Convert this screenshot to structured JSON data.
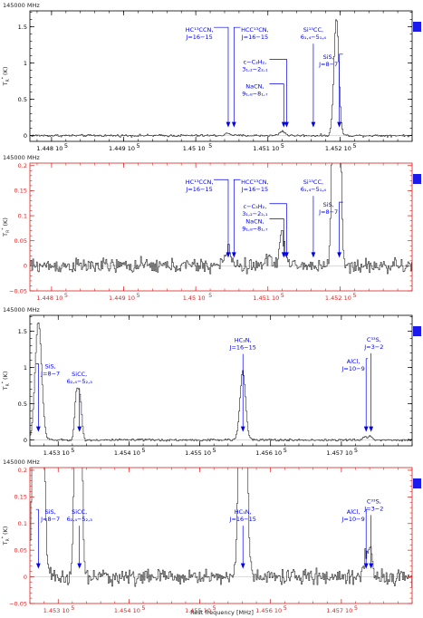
{
  "figure": {
    "xlabel": "Rest frequency [MHz]"
  },
  "chart_data": [
    {
      "type": "line",
      "frequency_label": "145000 MHz",
      "ylabel": "T",
      "ylabel_sub": "R",
      "ylabel_sup": "*",
      "ylabel_unit": "(K)",
      "xlim": [
        144770,
        145300
      ],
      "ylim": [
        -0.08,
        1.72
      ],
      "yticks": [
        0,
        0.5,
        1,
        1.5
      ],
      "ytick_labels": [
        "0",
        "0.5",
        "1",
        "1.5"
      ],
      "xticks": [
        144800,
        144900,
        145000,
        145100,
        145200
      ],
      "xtick_labels": [
        "1.448 10",
        "1.449 10",
        "1.45 10",
        "1.451 10",
        "1.452 10"
      ],
      "xtick_exp": "5",
      "axis_color": "#000000",
      "marker_color": "#1a1aee",
      "noise": 0.01,
      "lines": [
        {
          "x": 145195,
          "w": 3.5,
          "h": 1.62
        },
        {
          "x": 145120,
          "w": 4,
          "h": 0.06
        },
        {
          "x": 145045,
          "w": 4,
          "h": 0.03
        }
      ],
      "annotations": [
        {
          "x": 145045,
          "label_x": 145005,
          "label_y": 1.43,
          "lines": [
            "HC¹³CCN,",
            "J=16−15"
          ]
        },
        {
          "x": 145053,
          "label_x": 145082,
          "label_y": 1.43,
          "lines": [
            "HCC¹³CN,",
            "J=16−15"
          ]
        },
        {
          "x": 145126,
          "label_x": 145082,
          "label_y": 0.99,
          "lines": [
            "c−C₃H₂,",
            "3₁,₂−2₂,₁"
          ]
        },
        {
          "x": 145122,
          "label_x": 145082,
          "label_y": 0.65,
          "lines": [
            "NaCN,",
            "9₁,₈−8₁,₇"
          ]
        },
        {
          "x": 145163,
          "label_x": 145163,
          "label_y": 1.43,
          "lines": [
            "Si¹³CC,",
            "6₁,₄−5₁,₄"
          ]
        },
        {
          "x": 145199,
          "label_x": 145184,
          "label_y": 1.06,
          "lines": [
            "SiS,",
            "J=8−7"
          ]
        }
      ]
    },
    {
      "type": "line",
      "frequency_label": "145000 MHz",
      "ylabel": "T",
      "ylabel_sub": "R",
      "ylabel_sup": "*",
      "ylabel_unit": "(K)",
      "xlim": [
        144770,
        145300
      ],
      "ylim": [
        -0.05,
        0.205
      ],
      "yticks": [
        -0.05,
        0,
        0.05,
        0.1,
        0.15,
        0.2
      ],
      "ytick_labels": [
        "−0.05",
        "0",
        "0.05",
        "0.1",
        "0.15",
        "0.2"
      ],
      "xticks": [
        144800,
        144900,
        145000,
        145100,
        145200
      ],
      "xtick_labels": [
        "1.448 10",
        "1.449 10",
        "1.45 10",
        "1.451 10",
        "1.452 10"
      ],
      "xtick_exp": "5",
      "axis_color": "#dd2222",
      "marker_color": "#1a1aee",
      "noise": 0.009,
      "lines": [
        {
          "x": 145195,
          "w": 3.5,
          "h": 1.62
        },
        {
          "x": 145120,
          "w": 4,
          "h": 0.06
        },
        {
          "x": 145045,
          "w": 5,
          "h": 0.03
        },
        {
          "x": 145103,
          "w": 4,
          "h": 0.018
        }
      ],
      "annotations": [
        {
          "x": 145045,
          "label_x": 145005,
          "label_y": 0.163,
          "lines": [
            "HC¹³CCN,",
            "J=16−15"
          ]
        },
        {
          "x": 145053,
          "label_x": 145082,
          "label_y": 0.163,
          "lines": [
            "HCC¹³CN,",
            "J=16−15"
          ]
        },
        {
          "x": 145126,
          "label_x": 145082,
          "label_y": 0.115,
          "lines": [
            "c−C₃H₂,",
            "3₁,₂−2₂,₁"
          ]
        },
        {
          "x": 145122,
          "label_x": 145082,
          "label_y": 0.085,
          "lines": [
            "NaCN,",
            "9₁,₈−8₁,₇"
          ]
        },
        {
          "x": 145163,
          "label_x": 145163,
          "label_y": 0.163,
          "lines": [
            "Si¹³CC,",
            "6₁,₄−5₁,₄"
          ]
        },
        {
          "x": 145199,
          "label_x": 145184,
          "label_y": 0.118,
          "lines": [
            "SiS,",
            "J=8−7"
          ]
        }
      ]
    },
    {
      "type": "line",
      "frequency_label": "145000 MHz",
      "ylabel": "T",
      "ylabel_sub": "R",
      "ylabel_sup": "*",
      "ylabel_unit": "(K)",
      "xlim": [
        145260,
        145800
      ],
      "ylim": [
        -0.08,
        1.72
      ],
      "yticks": [
        0,
        0.5,
        1,
        1.5
      ],
      "ytick_labels": [
        "0",
        "0.5",
        "1",
        "1.5"
      ],
      "xticks": [
        145300,
        145400,
        145500,
        145600,
        145700
      ],
      "xtick_labels": [
        "1.453 10",
        "1.454 10",
        "1.455 10",
        "1.456 10",
        "1.457 10"
      ],
      "xtick_exp": "5",
      "axis_color": "#000000",
      "marker_color": "#1a1aee",
      "noise": 0.01,
      "lines": [
        {
          "x": 145272,
          "w": 4.5,
          "h": 1.64
        },
        {
          "x": 145326,
          "w": 2.5,
          "h": 0.62
        },
        {
          "x": 145331,
          "w": 2.5,
          "h": 0.55
        },
        {
          "x": 145561,
          "w": 4,
          "h": 0.95
        },
        {
          "x": 145734,
          "w": 3,
          "h": 0.04
        },
        {
          "x": 145741,
          "w": 3,
          "h": 0.05
        }
      ],
      "annotations": [
        {
          "x": 145272,
          "label_x": 145289,
          "label_y": 0.99,
          "lines": [
            "SiS,",
            "J=8−7"
          ]
        },
        {
          "x": 145330,
          "label_x": 145330,
          "label_y": 0.88,
          "lines": [
            "SiCC,",
            "6₂,₄−5₂,₃"
          ]
        },
        {
          "x": 145561,
          "label_x": 145561,
          "label_y": 1.35,
          "lines": [
            "HC₃N,",
            "J=16−15"
          ]
        },
        {
          "x": 145735,
          "label_x": 145717,
          "label_y": 1.06,
          "lines": [
            "AlCl,",
            "J=10−9"
          ]
        },
        {
          "x": 145742,
          "label_x": 145746,
          "label_y": 1.36,
          "lines": [
            "C³³S,",
            "J=3−2"
          ]
        }
      ]
    },
    {
      "type": "line",
      "frequency_label": "145000 MHz",
      "ylabel": "T",
      "ylabel_sub": "R",
      "ylabel_sup": "*",
      "ylabel_unit": "(K)",
      "xlim": [
        145260,
        145800
      ],
      "ylim": [
        -0.05,
        0.205
      ],
      "yticks": [
        -0.05,
        0,
        0.05,
        0.1,
        0.15,
        0.2
      ],
      "ytick_labels": [
        "−0.05",
        "0",
        "0.05",
        "0.1",
        "0.15",
        "0.2"
      ],
      "xticks": [
        145300,
        145400,
        145500,
        145600,
        145700
      ],
      "xtick_labels": [
        "1.453 10",
        "1.454 10",
        "1.455 10",
        "1.456 10",
        "1.457 10"
      ],
      "xtick_exp": "5",
      "axis_color": "#dd2222",
      "marker_color": "#1a1aee",
      "noise": 0.009,
      "lines": [
        {
          "x": 145272,
          "w": 4.5,
          "h": 1.64
        },
        {
          "x": 145326,
          "w": 2.5,
          "h": 0.62
        },
        {
          "x": 145331,
          "w": 2.5,
          "h": 0.55
        },
        {
          "x": 145561,
          "w": 4,
          "h": 0.95
        },
        {
          "x": 145734,
          "w": 3,
          "h": 0.035
        },
        {
          "x": 145741,
          "w": 3,
          "h": 0.055
        }
      ],
      "annotations": [
        {
          "x": 145272,
          "label_x": 145289,
          "label_y": 0.118,
          "lines": [
            "SiS,",
            "J=8−7"
          ]
        },
        {
          "x": 145330,
          "label_x": 145330,
          "label_y": 0.118,
          "lines": [
            "SiCC,",
            "6₂,₄−5₂,₃"
          ]
        },
        {
          "x": 145561,
          "label_x": 145561,
          "label_y": 0.118,
          "lines": [
            "HC₃N,",
            "J=16−15"
          ]
        },
        {
          "x": 145735,
          "label_x": 145717,
          "label_y": 0.118,
          "lines": [
            "AlCl,",
            "J=10−9"
          ]
        },
        {
          "x": 145742,
          "label_x": 145746,
          "label_y": 0.138,
          "lines": [
            "C³³S,",
            "J=3−2"
          ]
        }
      ]
    }
  ]
}
